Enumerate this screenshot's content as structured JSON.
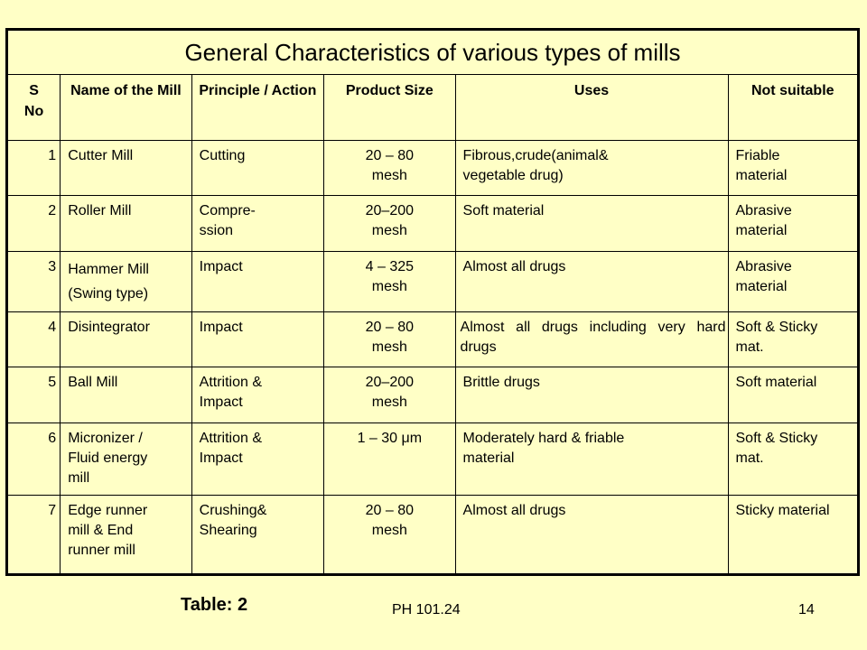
{
  "table": {
    "title": "General Characteristics of various types of mills",
    "headers": {
      "sno": [
        "S",
        "No"
      ],
      "name": "Name of the Mill",
      "principle": "Principle / Action",
      "size": "Product Size",
      "uses": "Uses",
      "not_suitable": "Not suitable"
    },
    "rows": [
      {
        "sno": "1",
        "name": [
          "Cutter Mill"
        ],
        "principle": [
          "Cutting"
        ],
        "size": [
          "20 – 80",
          "mesh"
        ],
        "uses": [
          "Fibrous,crude(animal&",
          "vegetable drug)"
        ],
        "not_suitable": [
          "Friable",
          "material"
        ]
      },
      {
        "sno": "2",
        "name": [
          "Roller Mill"
        ],
        "principle": [
          "Compre-",
          "ssion"
        ],
        "size": [
          "20–200",
          "mesh"
        ],
        "uses": [
          "Soft material"
        ],
        "not_suitable": [
          "Abrasive",
          "material"
        ]
      },
      {
        "sno": "3",
        "name": [
          "Hammer Mill",
          "(Swing type)"
        ],
        "principle": [
          "Impact"
        ],
        "size": [
          "4 – 325",
          "mesh"
        ],
        "uses": [
          "Almost all drugs"
        ],
        "not_suitable": [
          "Abrasive",
          "material"
        ]
      },
      {
        "sno": "4",
        "name": [
          "Disintegrator"
        ],
        "principle": [
          "Impact"
        ],
        "size": [
          "20 – 80",
          "mesh"
        ],
        "uses": [
          "Almost all drugs including very hard drugs"
        ],
        "not_suitable": [
          "Soft & Sticky",
          "mat."
        ]
      },
      {
        "sno": "5",
        "name": [
          "Ball Mill"
        ],
        "principle": [
          "Attrition &",
          "Impact"
        ],
        "size": [
          "20–200",
          "mesh"
        ],
        "uses": [
          "Brittle drugs"
        ],
        "not_suitable": [
          "Soft material"
        ]
      },
      {
        "sno": "6",
        "name": [
          "Micronizer /",
          "Fluid energy",
          "mill"
        ],
        "principle": [
          "Attrition &",
          "Impact"
        ],
        "size": [
          "1 – 30 μm"
        ],
        "uses": [
          "Moderately hard & friable",
          "material"
        ],
        "not_suitable": [
          "Soft & Sticky",
          "mat."
        ]
      },
      {
        "sno": "7",
        "name": [
          "Edge runner",
          "mill & End",
          "runner mill"
        ],
        "principle": [
          "Crushing&",
          "Shearing"
        ],
        "size": [
          "20 – 80",
          "mesh"
        ],
        "uses": [
          "Almost all drugs"
        ],
        "not_suitable": [
          "Sticky material"
        ]
      }
    ]
  },
  "footer": {
    "caption": "Table: 2",
    "code": "PH 101.24",
    "page": "14"
  }
}
